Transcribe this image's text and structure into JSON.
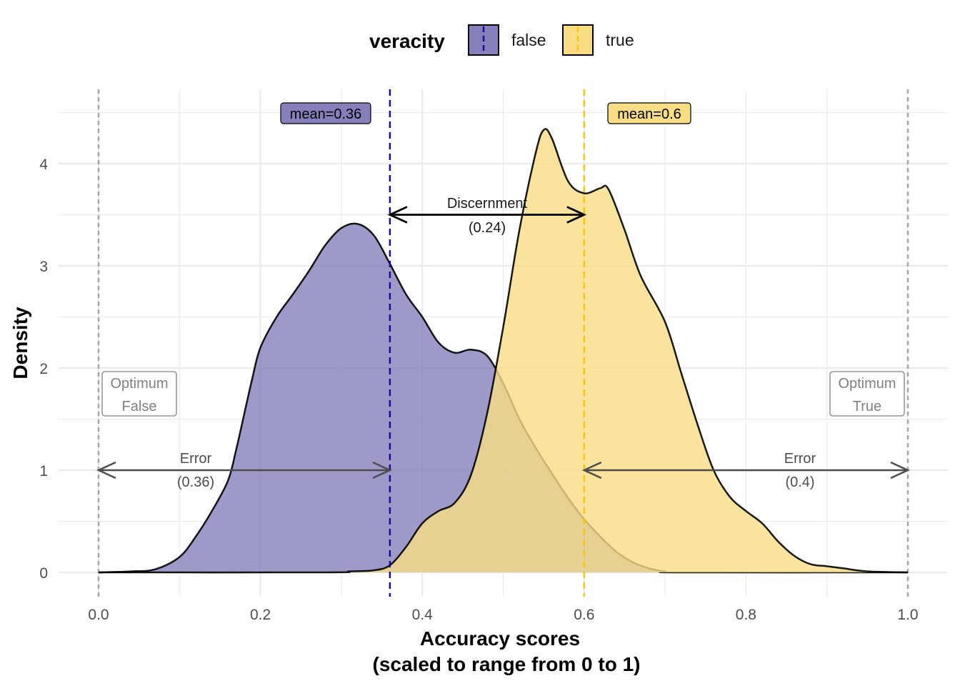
{
  "chart_data": {
    "type": "area",
    "subtype": "density",
    "title": "",
    "xlabel": [
      "Accuracy scores",
      "(scaled to range from 0 to 1)"
    ],
    "ylabel": "Density",
    "xlim": [
      -0.05,
      1.05
    ],
    "ylim": [
      -0.2,
      4.6
    ],
    "x_ticks": [
      0.0,
      0.2,
      0.4,
      0.6,
      0.8,
      1.0
    ],
    "x_tick_labels": [
      "0.0",
      "0.2",
      "0.4",
      "0.6",
      "0.8",
      "1.0"
    ],
    "y_ticks": [
      0,
      1,
      2,
      3,
      4
    ],
    "y_tick_labels": [
      "0",
      "1",
      "2",
      "3",
      "4"
    ],
    "grid": true,
    "legend": {
      "title": "veracity",
      "placement": "top",
      "entries": [
        "false",
        "true"
      ]
    },
    "series": [
      {
        "name": "false",
        "color": "#8580bb",
        "line_color": "#1a0f91",
        "mean": 0.36,
        "mean_label": "mean=0.36",
        "points": [
          [
            0.0,
            0
          ],
          [
            0.04,
            0.01
          ],
          [
            0.07,
            0.03
          ],
          [
            0.1,
            0.15
          ],
          [
            0.12,
            0.35
          ],
          [
            0.14,
            0.6
          ],
          [
            0.16,
            0.9
          ],
          [
            0.17,
            1.2
          ],
          [
            0.18,
            1.55
          ],
          [
            0.19,
            1.9
          ],
          [
            0.2,
            2.2
          ],
          [
            0.22,
            2.5
          ],
          [
            0.24,
            2.72
          ],
          [
            0.26,
            2.95
          ],
          [
            0.28,
            3.2
          ],
          [
            0.3,
            3.37
          ],
          [
            0.32,
            3.41
          ],
          [
            0.34,
            3.3
          ],
          [
            0.36,
            3.02
          ],
          [
            0.38,
            2.72
          ],
          [
            0.4,
            2.5
          ],
          [
            0.42,
            2.25
          ],
          [
            0.44,
            2.15
          ],
          [
            0.46,
            2.18
          ],
          [
            0.48,
            2.12
          ],
          [
            0.5,
            1.85
          ],
          [
            0.52,
            1.5
          ],
          [
            0.54,
            1.22
          ],
          [
            0.56,
            0.97
          ],
          [
            0.58,
            0.73
          ],
          [
            0.6,
            0.52
          ],
          [
            0.62,
            0.35
          ],
          [
            0.64,
            0.2
          ],
          [
            0.66,
            0.1
          ],
          [
            0.68,
            0.04
          ],
          [
            0.7,
            0.01
          ],
          [
            0.72,
            0.0
          ],
          [
            1.0,
            0.0
          ]
        ]
      },
      {
        "name": "true",
        "color": "#f9dd84",
        "line_color": "#f5c518",
        "mean": 0.6,
        "mean_label": "mean=0.6",
        "points": [
          [
            0.0,
            0
          ],
          [
            0.28,
            0.0
          ],
          [
            0.31,
            0.01
          ],
          [
            0.34,
            0.02
          ],
          [
            0.36,
            0.07
          ],
          [
            0.38,
            0.25
          ],
          [
            0.4,
            0.48
          ],
          [
            0.42,
            0.6
          ],
          [
            0.44,
            0.68
          ],
          [
            0.46,
            0.95
          ],
          [
            0.48,
            1.55
          ],
          [
            0.5,
            2.4
          ],
          [
            0.52,
            3.35
          ],
          [
            0.54,
            4.1
          ],
          [
            0.55,
            4.33
          ],
          [
            0.56,
            4.25
          ],
          [
            0.58,
            3.83
          ],
          [
            0.6,
            3.71
          ],
          [
            0.62,
            3.76
          ],
          [
            0.63,
            3.75
          ],
          [
            0.65,
            3.35
          ],
          [
            0.67,
            2.9
          ],
          [
            0.7,
            2.45
          ],
          [
            0.72,
            1.95
          ],
          [
            0.74,
            1.45
          ],
          [
            0.76,
            1.0
          ],
          [
            0.78,
            0.74
          ],
          [
            0.8,
            0.6
          ],
          [
            0.82,
            0.48
          ],
          [
            0.84,
            0.3
          ],
          [
            0.86,
            0.16
          ],
          [
            0.88,
            0.08
          ],
          [
            0.9,
            0.06
          ],
          [
            0.92,
            0.04
          ],
          [
            0.95,
            0.01
          ],
          [
            1.0,
            0.0
          ]
        ]
      }
    ],
    "annotations": {
      "discernment": {
        "label": "Discernment",
        "value": "(0.24)",
        "x_from": 0.36,
        "x_to": 0.6,
        "y": 3.5
      },
      "error_false": {
        "label": "Error",
        "value": "(0.36)",
        "x_from": 0.0,
        "x_to": 0.36,
        "y": 1.0
      },
      "error_true": {
        "label": "Error",
        "value": "(0.4)",
        "x_from": 0.6,
        "x_to": 1.0,
        "y": 1.0
      },
      "optimum_false": {
        "line1": "Optimum",
        "line2": "False",
        "x": 0.0
      },
      "optimum_true": {
        "line1": "Optimum",
        "line2": "True",
        "x": 1.0
      }
    }
  }
}
